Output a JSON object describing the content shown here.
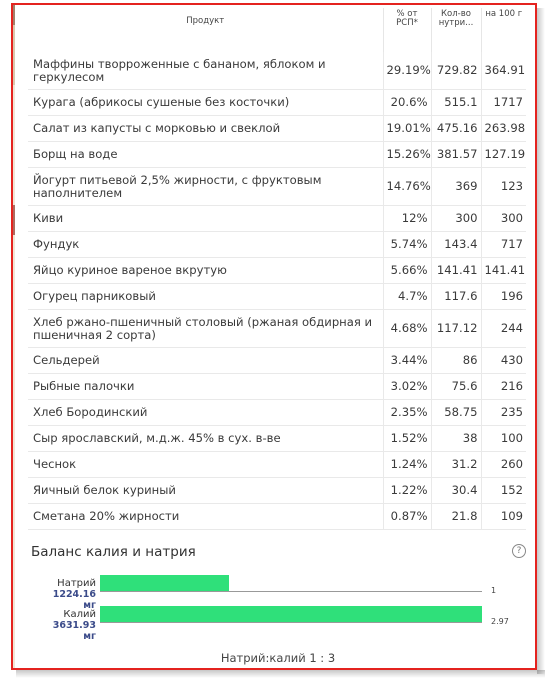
{
  "table": {
    "headers": {
      "product": "Продукт",
      "percent": "% от РСП*",
      "amount": "Кол-во нутри...",
      "per100": "на 100 г"
    },
    "rows": [
      {
        "name": "Маффины творроженные с бананом, яблоком и геркулесом",
        "pct": "29.19%",
        "amount": "729.82",
        "per100": "364.91"
      },
      {
        "name": "Курага (абрикосы сушеные без косточки)",
        "pct": "20.6%",
        "amount": "515.1",
        "per100": "1717"
      },
      {
        "name": "Салат из капусты с морковью и свеклой",
        "pct": "19.01%",
        "amount": "475.16",
        "per100": "263.98"
      },
      {
        "name": "Борщ на воде",
        "pct": "15.26%",
        "amount": "381.57",
        "per100": "127.19"
      },
      {
        "name": "Йогурт питьевой 2,5% жирности, с фруктовым наполнителем",
        "pct": "14.76%",
        "amount": "369",
        "per100": "123"
      },
      {
        "name": "Киви",
        "pct": "12%",
        "amount": "300",
        "per100": "300"
      },
      {
        "name": "Фундук",
        "pct": "5.74%",
        "amount": "143.4",
        "per100": "717"
      },
      {
        "name": "Яйцо куриное вареное вкрутую",
        "pct": "5.66%",
        "amount": "141.41",
        "per100": "141.41"
      },
      {
        "name": "Огурец парниковый",
        "pct": "4.7%",
        "amount": "117.6",
        "per100": "196"
      },
      {
        "name": "Хлеб ржано-пшеничный столовый (ржаная обдирная и пшеничная 2 сорта)",
        "pct": "4.68%",
        "amount": "117.12",
        "per100": "244"
      },
      {
        "name": "Сельдерей",
        "pct": "3.44%",
        "amount": "86",
        "per100": "430"
      },
      {
        "name": "Рыбные палочки",
        "pct": "3.02%",
        "amount": "75.6",
        "per100": "216"
      },
      {
        "name": "Хлеб Бородинский",
        "pct": "2.35%",
        "amount": "58.75",
        "per100": "235"
      },
      {
        "name": "Сыр ярославский, м.д.ж. 45% в сух. в-ве",
        "pct": "1.52%",
        "amount": "38",
        "per100": "100"
      },
      {
        "name": "Чеснок",
        "pct": "1.24%",
        "amount": "31.2",
        "per100": "260"
      },
      {
        "name": "Яичный белок куриный",
        "pct": "1.22%",
        "amount": "30.4",
        "per100": "152"
      },
      {
        "name": "Сметана 20% жирности",
        "pct": "0.87%",
        "amount": "21.8",
        "per100": "109"
      }
    ]
  },
  "balance": {
    "title": "Баланс калия и натрия",
    "help_icon": "?",
    "bars": [
      {
        "label": "Натрий",
        "value_text": "1224.16 мг",
        "ratio": "1",
        "fraction": 0.337
      },
      {
        "label": "Калий",
        "value_text": "3631.93 мг",
        "ratio": "2.97",
        "fraction": 1.0
      }
    ],
    "ratio_text": "Натрий:калий 1 : 3",
    "bar_color": "#2fe07a"
  }
}
